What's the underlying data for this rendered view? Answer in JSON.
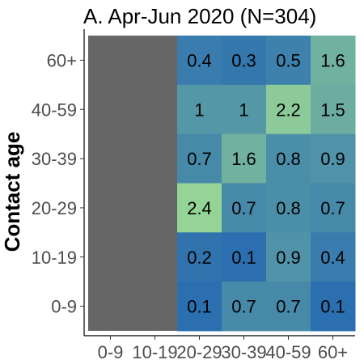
{
  "chart_data": {
    "type": "heatmap",
    "title": "A. Apr-Jun 2020 (N=304)",
    "xlabel": "",
    "ylabel": "Contact age",
    "x_categories": [
      "0-9",
      "10-19",
      "20-29",
      "30-39",
      "40-59",
      "60+"
    ],
    "y_categories": [
      "0-9",
      "10-19",
      "20-29",
      "30-39",
      "40-59",
      "60+"
    ],
    "missing_columns": [
      "0-9",
      "10-19"
    ],
    "missing_color": "#666666",
    "color_low": "#2b6fb0",
    "color_high": "#95d497",
    "value_range": [
      0.1,
      2.4
    ],
    "cells": [
      {
        "x": "20-29",
        "y": "60+",
        "value": 0.4,
        "label": "0.4"
      },
      {
        "x": "30-39",
        "y": "60+",
        "value": 0.3,
        "label": "0.3"
      },
      {
        "x": "40-59",
        "y": "60+",
        "value": 0.5,
        "label": "0.5"
      },
      {
        "x": "60+",
        "y": "60+",
        "value": 1.6,
        "label": "1.6"
      },
      {
        "x": "20-29",
        "y": "40-59",
        "value": 1.0,
        "label": "1"
      },
      {
        "x": "30-39",
        "y": "40-59",
        "value": 1.0,
        "label": "1"
      },
      {
        "x": "40-59",
        "y": "40-59",
        "value": 2.2,
        "label": "2.2"
      },
      {
        "x": "60+",
        "y": "40-59",
        "value": 1.5,
        "label": "1.5"
      },
      {
        "x": "20-29",
        "y": "30-39",
        "value": 0.7,
        "label": "0.7"
      },
      {
        "x": "30-39",
        "y": "30-39",
        "value": 1.6,
        "label": "1.6"
      },
      {
        "x": "40-59",
        "y": "30-39",
        "value": 0.8,
        "label": "0.8"
      },
      {
        "x": "60+",
        "y": "30-39",
        "value": 0.9,
        "label": "0.9"
      },
      {
        "x": "20-29",
        "y": "20-29",
        "value": 2.4,
        "label": "2.4"
      },
      {
        "x": "30-39",
        "y": "20-29",
        "value": 0.7,
        "label": "0.7"
      },
      {
        "x": "40-59",
        "y": "20-29",
        "value": 0.8,
        "label": "0.8"
      },
      {
        "x": "60+",
        "y": "20-29",
        "value": 0.7,
        "label": "0.7"
      },
      {
        "x": "20-29",
        "y": "10-19",
        "value": 0.2,
        "label": "0.2"
      },
      {
        "x": "30-39",
        "y": "10-19",
        "value": 0.1,
        "label": "0.1"
      },
      {
        "x": "40-59",
        "y": "10-19",
        "value": 0.9,
        "label": "0.9"
      },
      {
        "x": "60+",
        "y": "10-19",
        "value": 0.4,
        "label": "0.4"
      },
      {
        "x": "20-29",
        "y": "0-9",
        "value": 0.1,
        "label": "0.1"
      },
      {
        "x": "30-39",
        "y": "0-9",
        "value": 0.7,
        "label": "0.7"
      },
      {
        "x": "40-59",
        "y": "0-9",
        "value": 0.7,
        "label": "0.7"
      },
      {
        "x": "60+",
        "y": "0-9",
        "value": 0.1,
        "label": "0.1"
      }
    ],
    "grid": false,
    "legend": "none"
  }
}
